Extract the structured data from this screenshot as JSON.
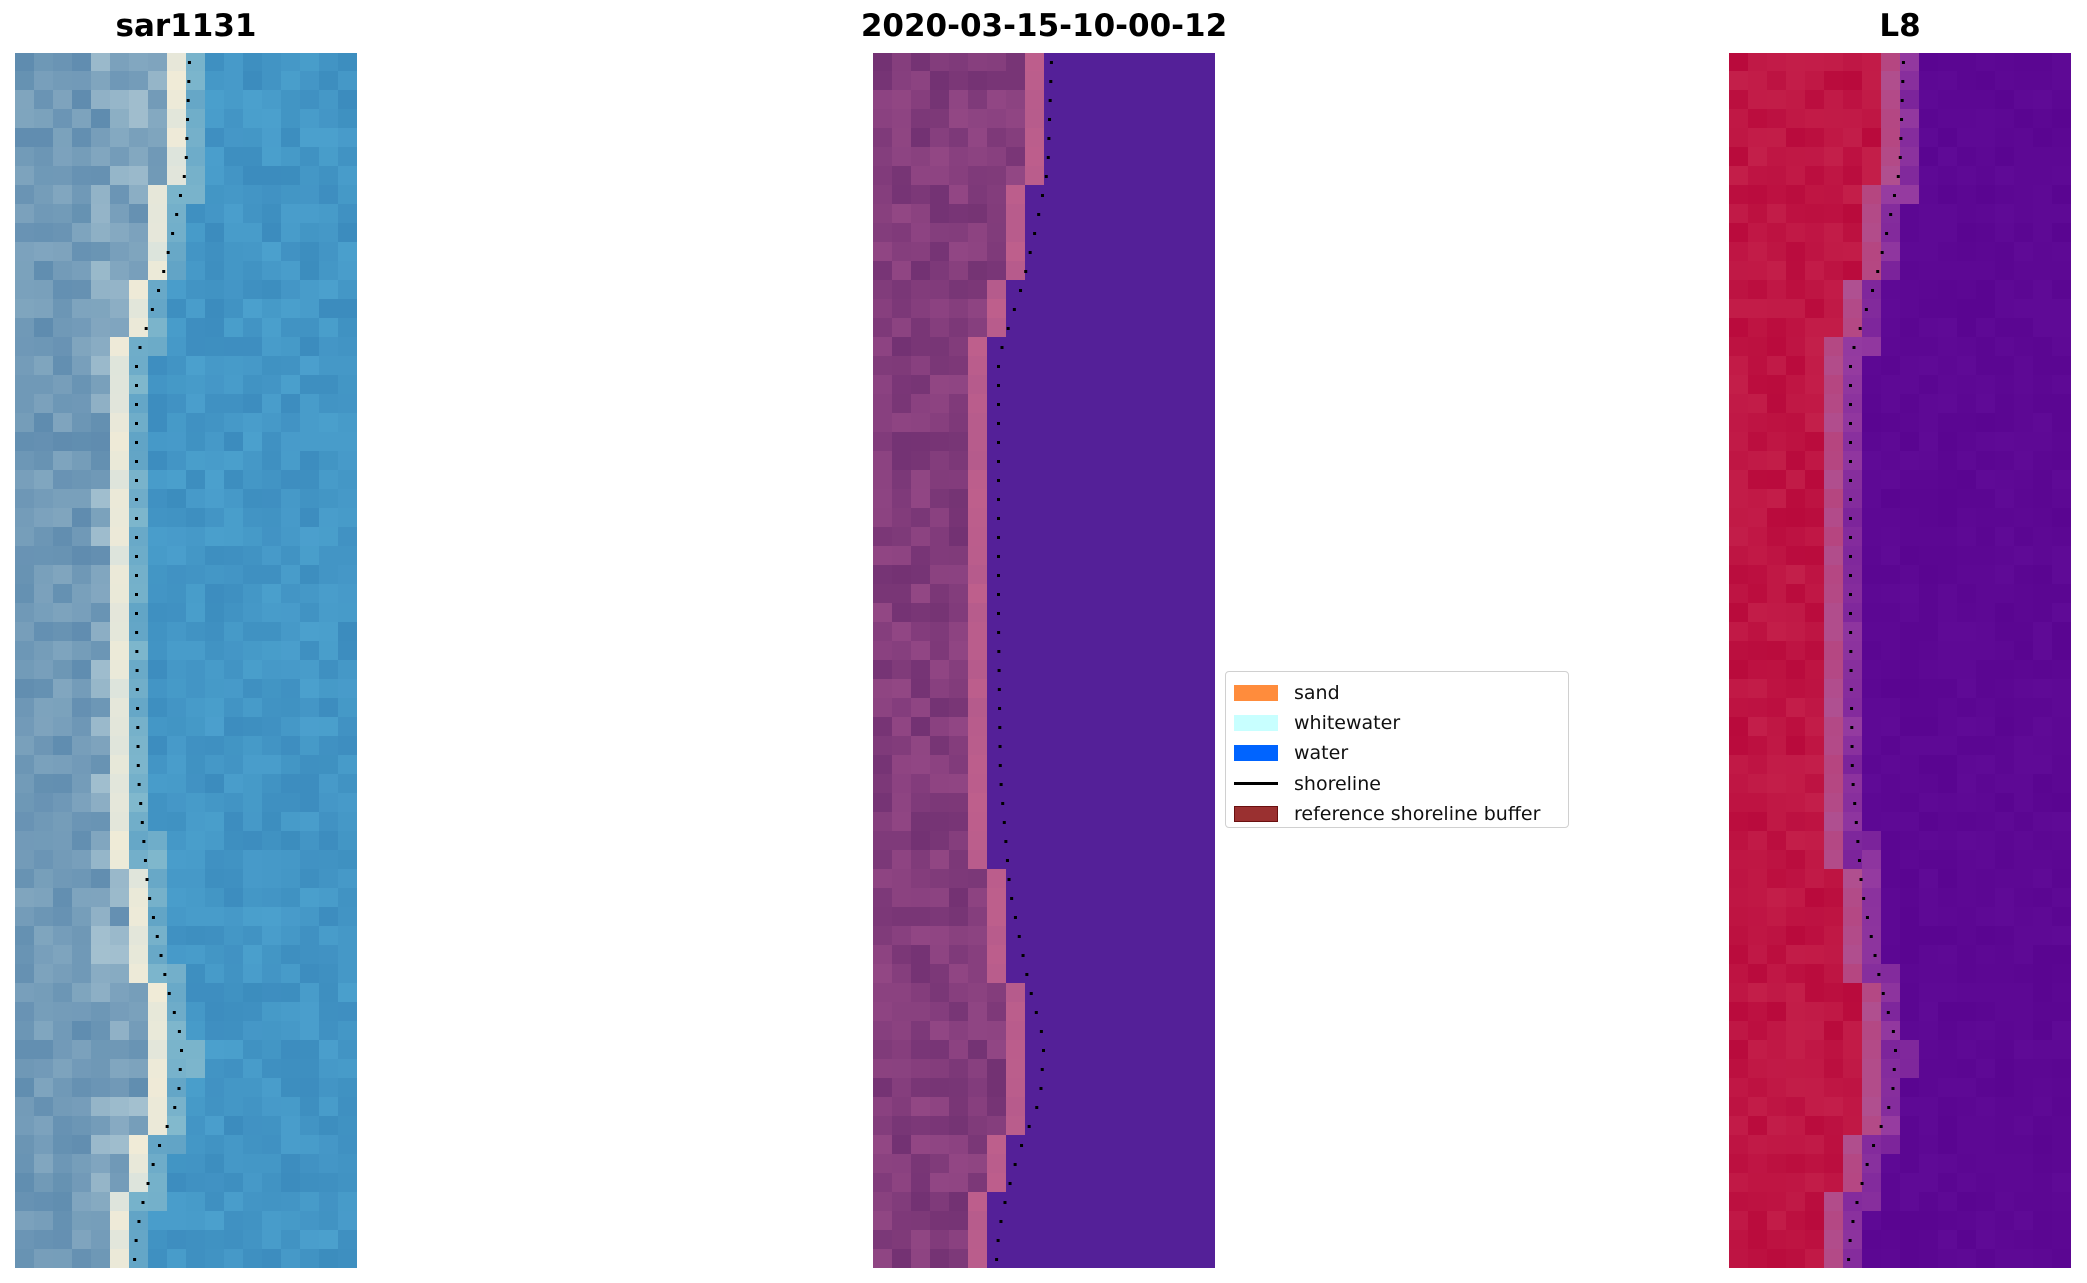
{
  "panels": [
    {
      "title": "sar1131",
      "kind": "rgb"
    },
    {
      "title": "2020-03-15-10-00-12",
      "kind": "classified"
    },
    {
      "title": "L8",
      "kind": "index"
    }
  ],
  "legend": {
    "items": [
      {
        "label": "sand",
        "type": "patch",
        "color": "#ff8c3c"
      },
      {
        "label": "whitewater",
        "type": "patch",
        "color": "#c8ffff"
      },
      {
        "label": "water",
        "type": "patch",
        "color": "#0064ff"
      },
      {
        "label": "shoreline",
        "type": "line",
        "color": "#000000"
      },
      {
        "label": "reference shoreline buffer",
        "type": "patch",
        "color": "#9a3030",
        "edge": "#6a1010"
      }
    ]
  }
}
